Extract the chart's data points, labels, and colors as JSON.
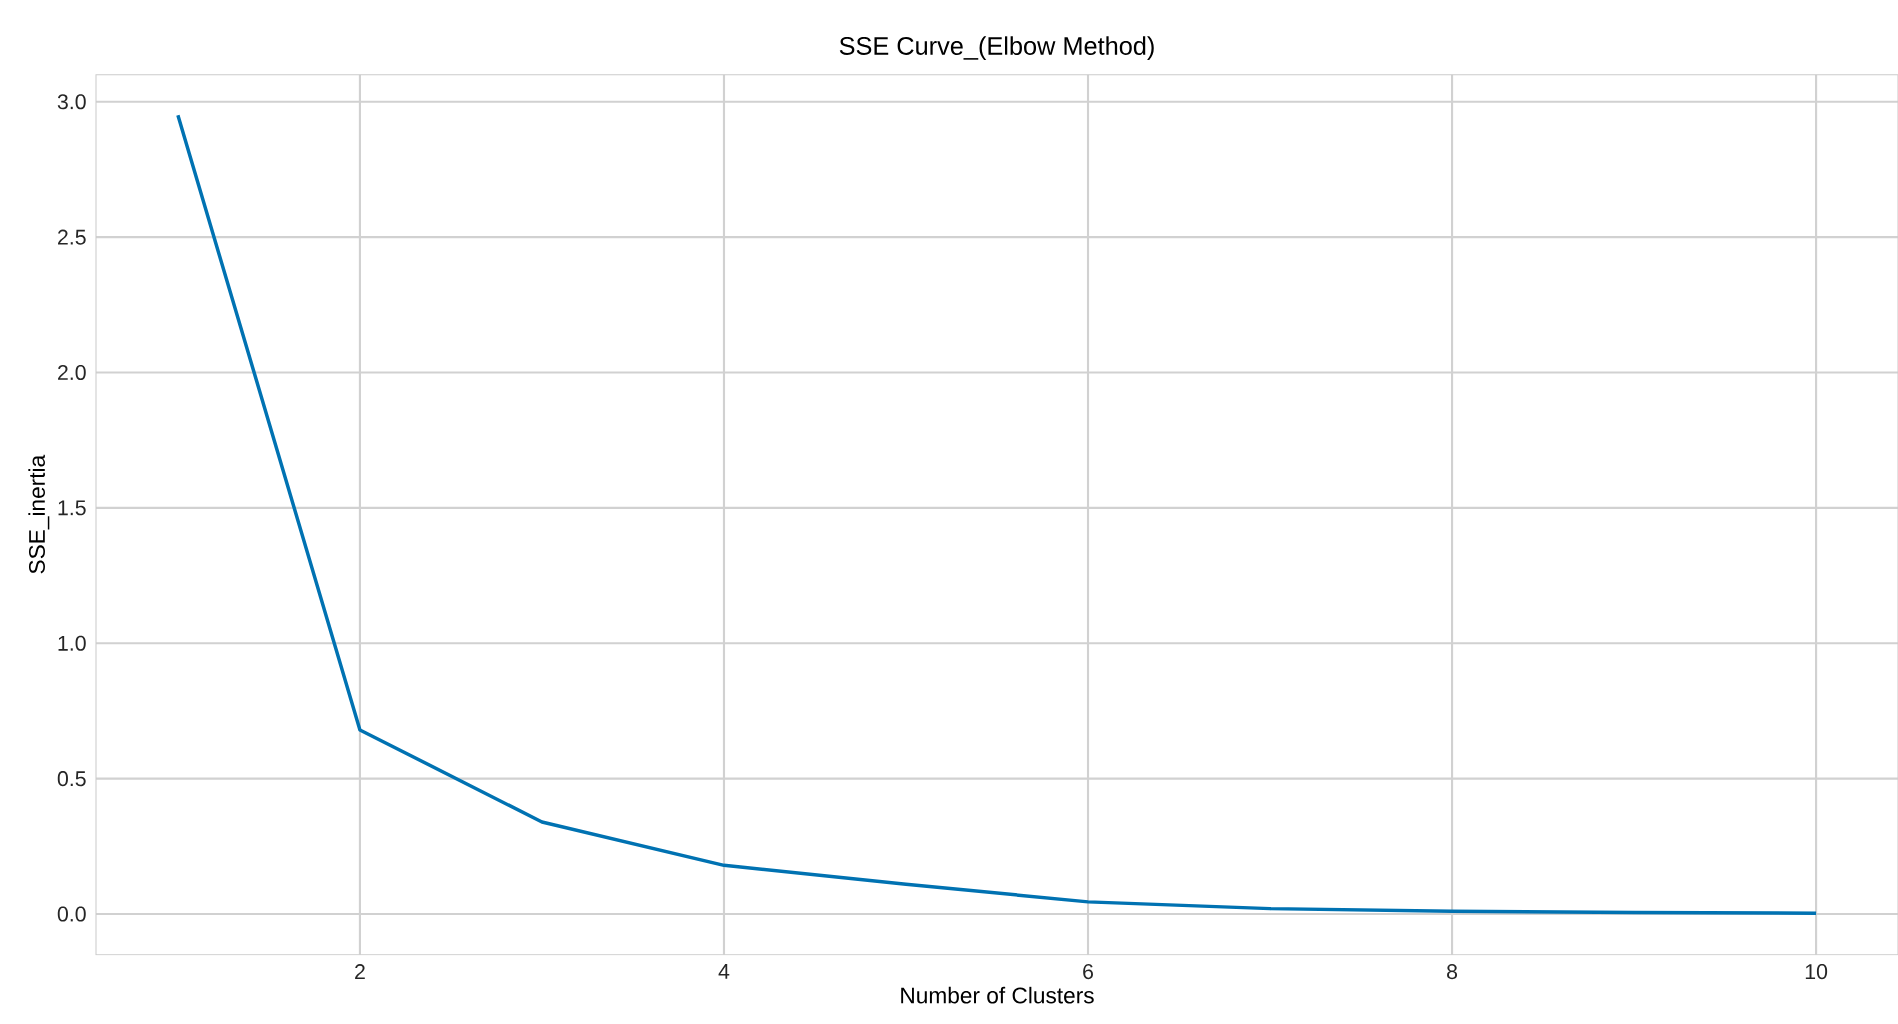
{
  "chart_data": {
    "type": "line",
    "title": "SSE Curve_(Elbow Method)",
    "xlabel": "Number of Clusters",
    "ylabel": "SSE_inertia",
    "x": [
      1,
      2,
      3,
      4,
      5,
      6,
      7,
      8,
      9,
      10
    ],
    "series": [
      {
        "color": "#0072b2",
        "values": [
          2.95,
          0.68,
          0.34,
          0.18,
          0.11,
          0.045,
          0.02,
          0.01,
          0.006,
          0.003
        ]
      }
    ],
    "xlim": [
      0.55,
      10.45
    ],
    "ylim": [
      -0.15,
      3.1
    ],
    "xticks": [
      2,
      4,
      6,
      8,
      10
    ],
    "yticks": [
      {
        "value": 0,
        "label": "0.0"
      },
      {
        "value": 0.5,
        "label": "0.5"
      },
      {
        "value": 1,
        "label": "1.0"
      },
      {
        "value": 1.5,
        "label": "1.5"
      },
      {
        "value": 2,
        "label": "2.0"
      },
      {
        "value": 2.5,
        "label": "2.5"
      },
      {
        "value": 3,
        "label": "3.0"
      }
    ],
    "grid": true,
    "marker": "none",
    "line_style": "solid"
  }
}
